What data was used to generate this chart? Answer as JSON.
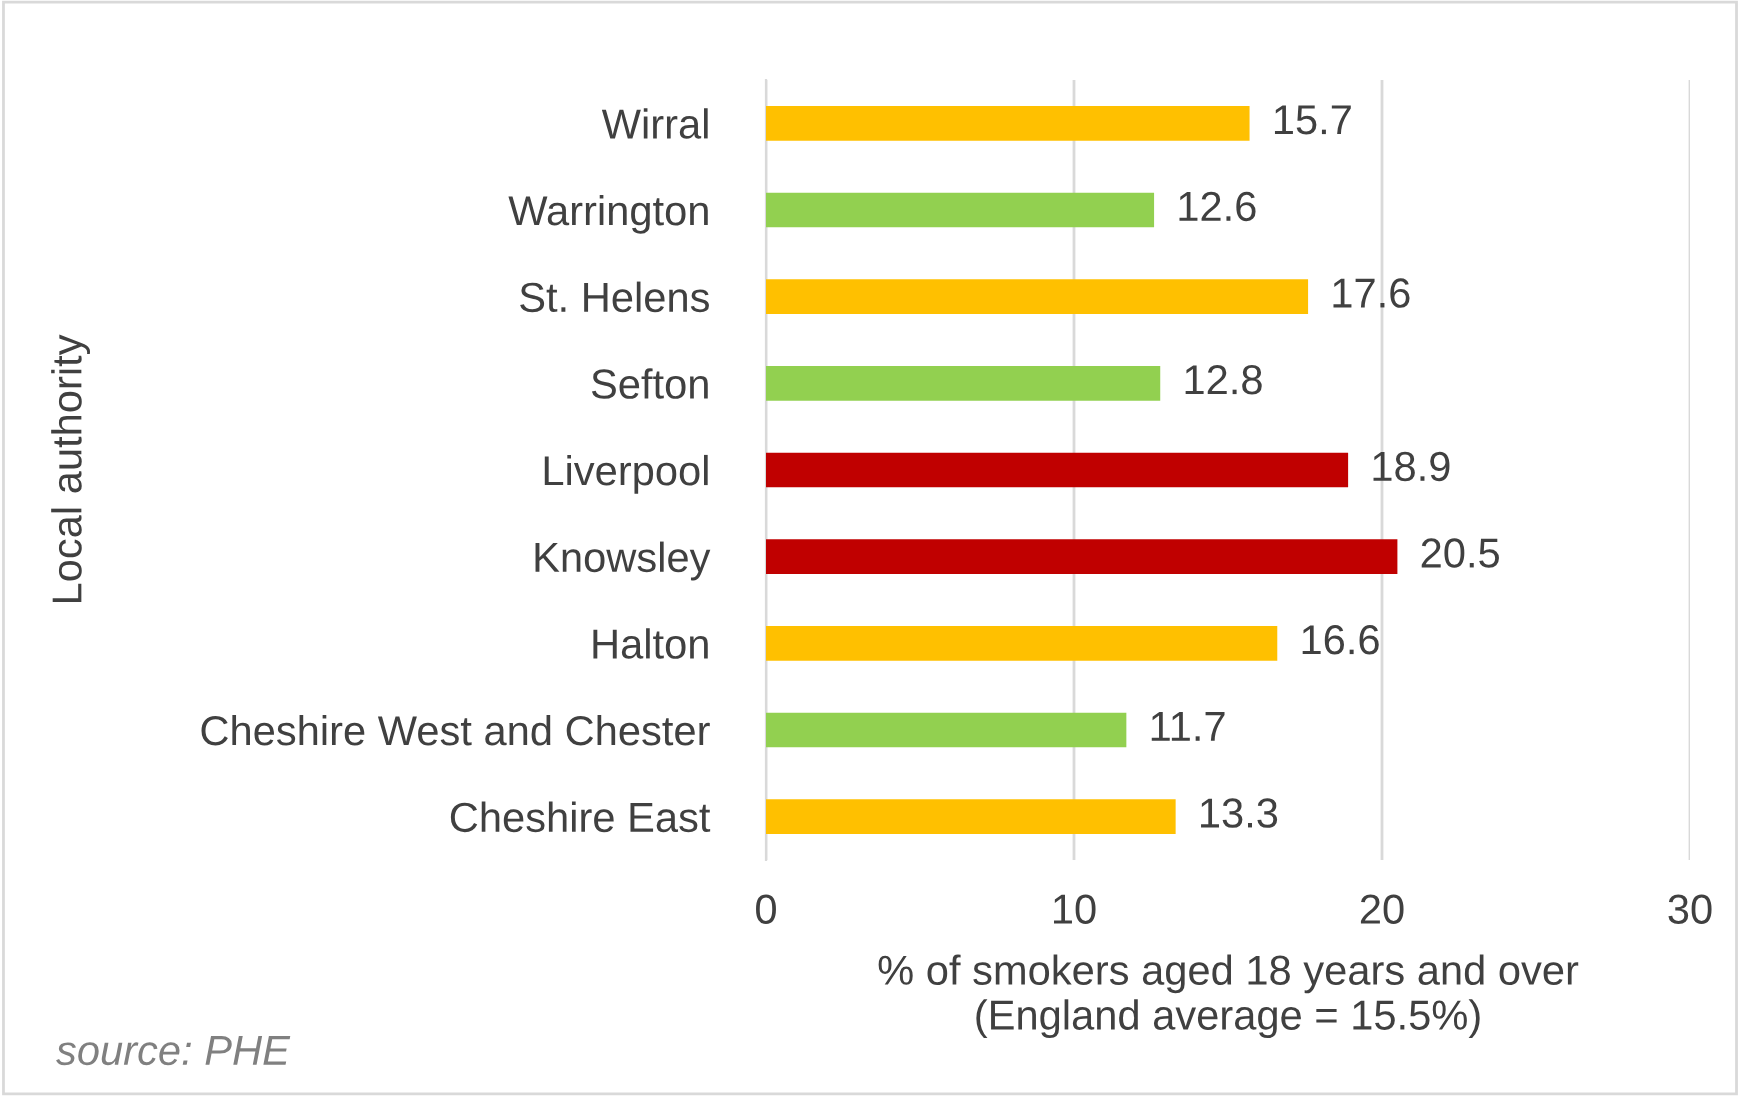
{
  "chart_data": {
    "type": "bar",
    "orientation": "horizontal",
    "ylabel": "Local authority",
    "xlabel": "% of smokers aged 18 years and over\n(England average = 15.5%)",
    "categories": [
      "Wirral",
      "Warrington",
      "St. Helens",
      "Sefton",
      "Liverpool",
      "Knowsley",
      "Halton",
      "Cheshire West and Chester",
      "Cheshire East"
    ],
    "values": [
      15.7,
      12.6,
      17.6,
      12.8,
      18.9,
      20.5,
      16.6,
      11.7,
      13.3
    ],
    "colors": [
      "#ffc000",
      "#92d050",
      "#ffc000",
      "#92d050",
      "#c00000",
      "#c00000",
      "#ffc000",
      "#92d050",
      "#ffc000"
    ],
    "xlim": [
      0,
      30
    ],
    "xticks": [
      0,
      10,
      20,
      30
    ],
    "grid": "x",
    "data_labels": true,
    "annotations": [
      "source: PHE"
    ]
  }
}
